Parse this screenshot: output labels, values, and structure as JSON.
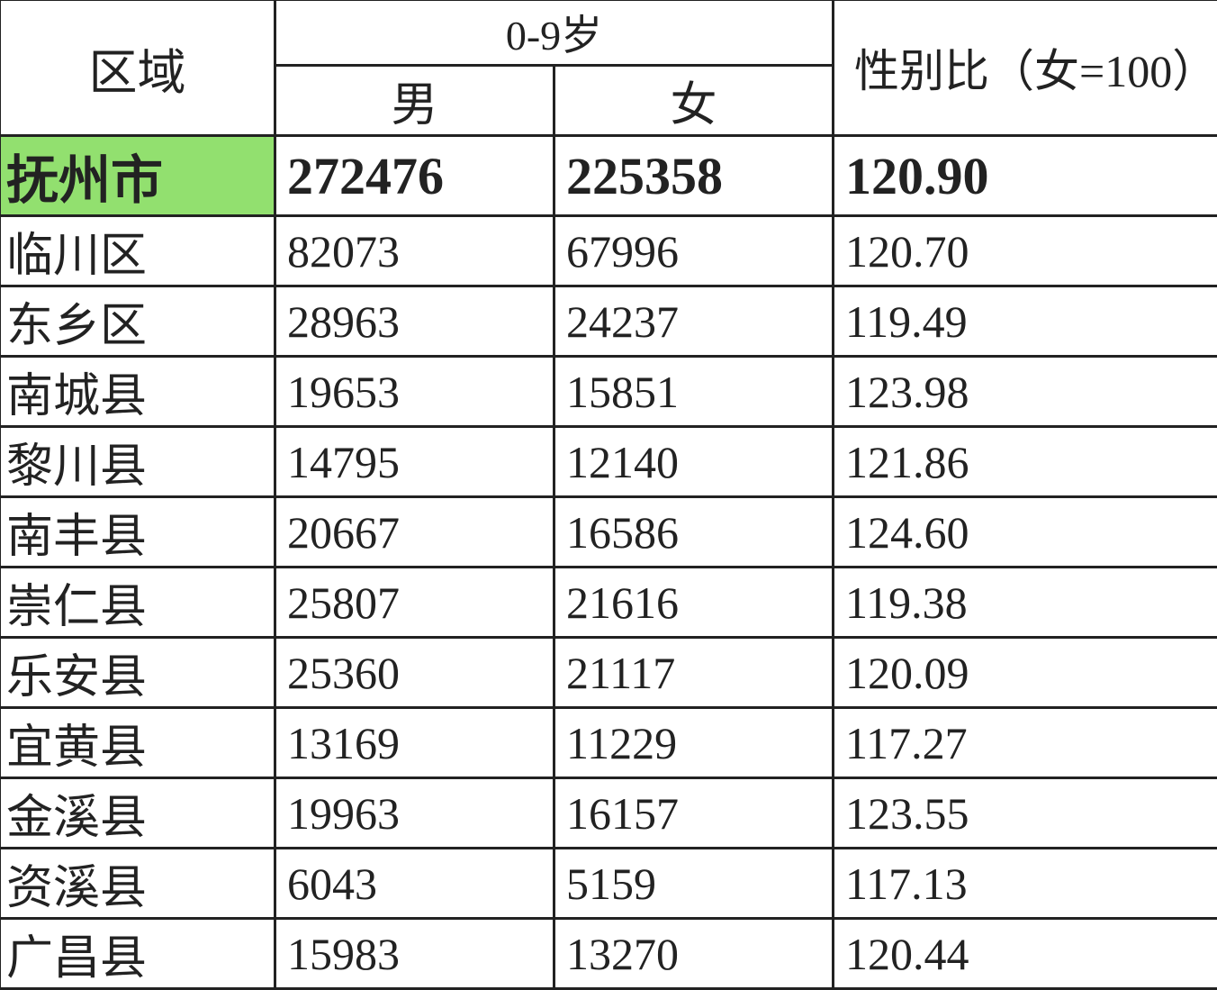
{
  "header": {
    "region": "区域",
    "age_group": "0-9岁",
    "male": "男",
    "female": "女",
    "sex_ratio": "性别比（女=100）"
  },
  "colors": {
    "total_row_highlight": "#92e06f"
  },
  "total": {
    "region": "抚州市",
    "male": "272476",
    "female": "225358",
    "ratio": "120.90"
  },
  "rows": [
    {
      "region": "临川区",
      "male": "82073",
      "female": "67996",
      "ratio": "120.70"
    },
    {
      "region": "东乡区",
      "male": "28963",
      "female": "24237",
      "ratio": "119.49"
    },
    {
      "region": "南城县",
      "male": "19653",
      "female": "15851",
      "ratio": "123.98"
    },
    {
      "region": "黎川县",
      "male": "14795",
      "female": "12140",
      "ratio": "121.86"
    },
    {
      "region": "南丰县",
      "male": "20667",
      "female": "16586",
      "ratio": "124.60"
    },
    {
      "region": "崇仁县",
      "male": "25807",
      "female": "21616",
      "ratio": "119.38"
    },
    {
      "region": "乐安县",
      "male": "25360",
      "female": "21117",
      "ratio": "120.09"
    },
    {
      "region": "宜黄县",
      "male": "13169",
      "female": "11229",
      "ratio": "117.27"
    },
    {
      "region": "金溪县",
      "male": "19963",
      "female": "16157",
      "ratio": "123.55"
    },
    {
      "region": "资溪县",
      "male": "6043",
      "female": "5159",
      "ratio": "117.13"
    },
    {
      "region": "广昌县",
      "male": "15983",
      "female": "13270",
      "ratio": "120.44"
    }
  ]
}
